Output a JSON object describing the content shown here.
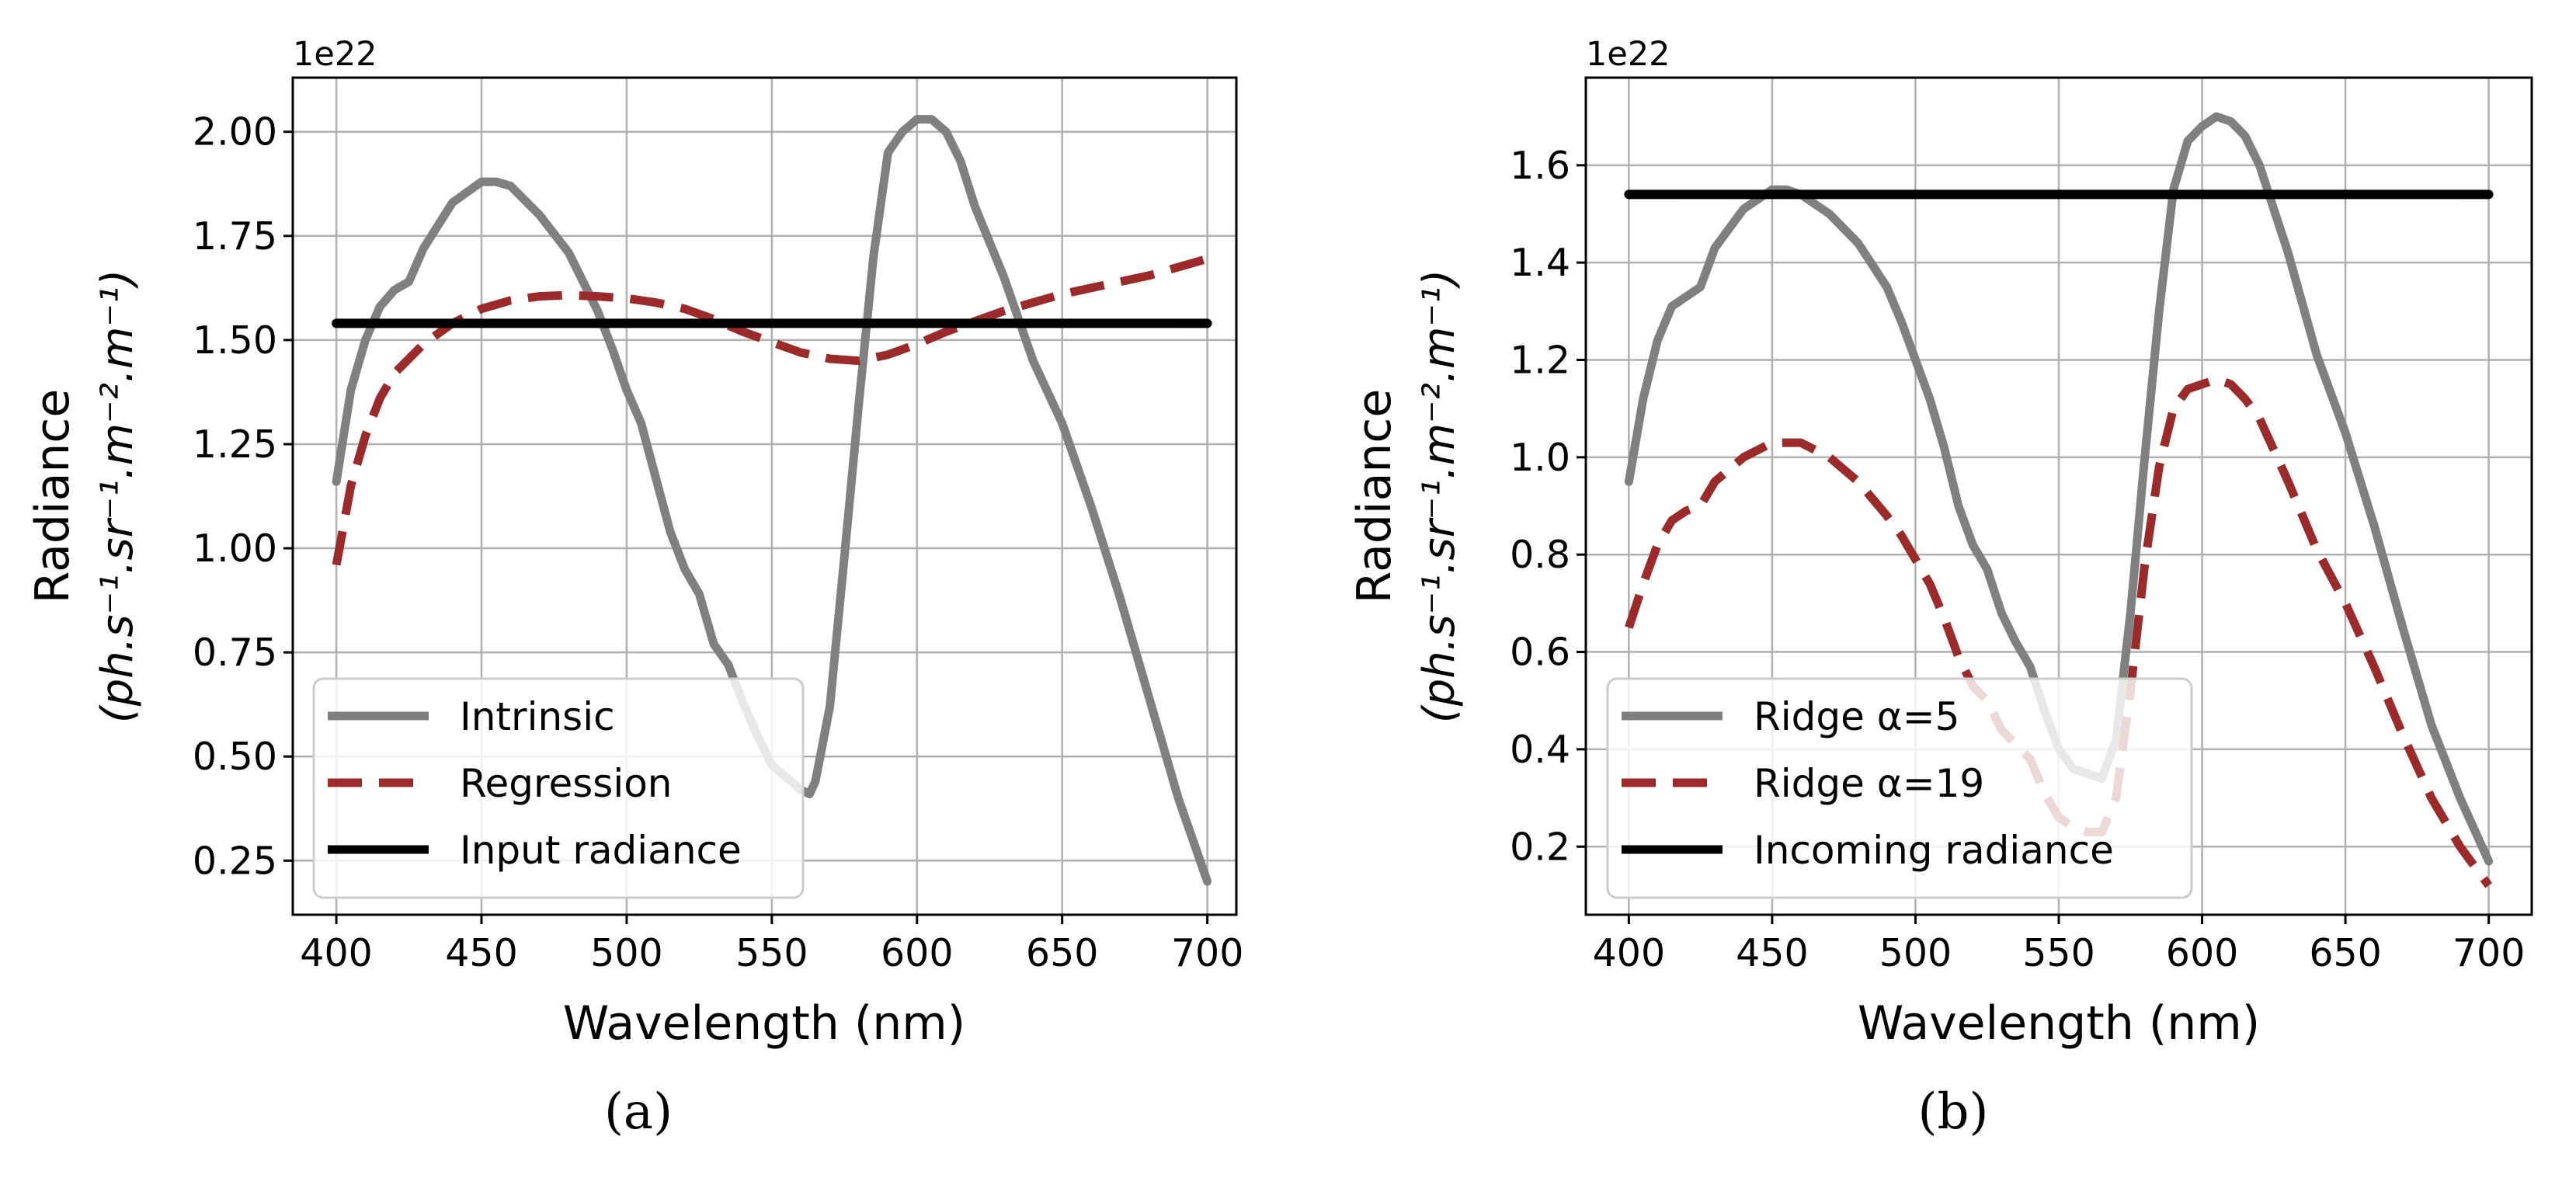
{
  "chart_data": [
    {
      "type": "line",
      "caption": "(a)",
      "offset_text": "1e22",
      "xlabel": "Wavelength (nm)",
      "ylabel_line1": "Radiance",
      "ylabel_line2": "(ph.s⁻¹.sr⁻¹.m⁻².m⁻¹)",
      "xlim": [
        385,
        710
      ],
      "ylim": [
        0.12,
        2.13
      ],
      "xticks": [
        400,
        450,
        500,
        550,
        600,
        650,
        700
      ],
      "xtick_labels": [
        "400",
        "450",
        "500",
        "550",
        "600",
        "650",
        "700"
      ],
      "yticks": [
        0.25,
        0.5,
        0.75,
        1.0,
        1.25,
        1.5,
        1.75,
        2.0
      ],
      "ytick_labels": [
        "0.25",
        "0.50",
        "0.75",
        "1.00",
        "1.25",
        "1.50",
        "1.75",
        "2.00"
      ],
      "grid": true,
      "legend_position": "lower-left",
      "series": [
        {
          "name": "Intrinsic",
          "color": "#808080",
          "style": "solid",
          "x": [
            400,
            405,
            410,
            415,
            420,
            425,
            430,
            440,
            450,
            455,
            460,
            470,
            480,
            490,
            495,
            500,
            505,
            510,
            515,
            520,
            525,
            530,
            535,
            540,
            545,
            550,
            555,
            560,
            563,
            565,
            570,
            575,
            580,
            585,
            590,
            595,
            600,
            605,
            610,
            615,
            620,
            630,
            640,
            650,
            660,
            670,
            680,
            690,
            700
          ],
          "y": [
            1.16,
            1.38,
            1.5,
            1.58,
            1.62,
            1.64,
            1.72,
            1.83,
            1.88,
            1.88,
            1.87,
            1.8,
            1.71,
            1.57,
            1.48,
            1.38,
            1.3,
            1.17,
            1.04,
            0.95,
            0.89,
            0.77,
            0.72,
            0.63,
            0.55,
            0.48,
            0.45,
            0.42,
            0.41,
            0.44,
            0.62,
            0.98,
            1.35,
            1.7,
            1.95,
            2.0,
            2.03,
            2.03,
            2.0,
            1.93,
            1.82,
            1.65,
            1.45,
            1.3,
            1.1,
            0.88,
            0.64,
            0.4,
            0.2
          ]
        },
        {
          "name": "Regression",
          "color": "#9b2a2a",
          "style": "dashed",
          "x": [
            400,
            405,
            410,
            415,
            420,
            430,
            440,
            450,
            460,
            470,
            480,
            490,
            500,
            510,
            520,
            530,
            540,
            550,
            560,
            570,
            580,
            590,
            600,
            610,
            620,
            630,
            640,
            650,
            660,
            670,
            680,
            690,
            700
          ],
          "y": [
            0.96,
            1.15,
            1.27,
            1.36,
            1.42,
            1.49,
            1.54,
            1.575,
            1.595,
            1.605,
            1.608,
            1.605,
            1.6,
            1.59,
            1.575,
            1.55,
            1.52,
            1.495,
            1.47,
            1.455,
            1.45,
            1.465,
            1.49,
            1.52,
            1.545,
            1.57,
            1.59,
            1.61,
            1.625,
            1.64,
            1.655,
            1.675,
            1.695
          ]
        },
        {
          "name": "Input radiance",
          "color": "#000000",
          "style": "solid",
          "x": [
            400,
            700
          ],
          "y": [
            1.54,
            1.54
          ]
        }
      ]
    },
    {
      "type": "line",
      "caption": "(b)",
      "offset_text": "1e22",
      "xlabel": "Wavelength (nm)",
      "ylabel_line1": "Radiance",
      "ylabel_line2": "(ph.s⁻¹.sr⁻¹.m⁻².m⁻¹)",
      "xlim": [
        385,
        715
      ],
      "ylim": [
        0.06,
        1.78
      ],
      "xticks": [
        400,
        450,
        500,
        550,
        600,
        650,
        700
      ],
      "xtick_labels": [
        "400",
        "450",
        "500",
        "550",
        "600",
        "650",
        "700"
      ],
      "yticks": [
        0.2,
        0.4,
        0.6,
        0.8,
        1.0,
        1.2,
        1.4,
        1.6
      ],
      "ytick_labels": [
        "0.2",
        "0.4",
        "0.6",
        "0.8",
        "1.0",
        "1.2",
        "1.4",
        "1.6"
      ],
      "grid": true,
      "legend_position": "lower-left",
      "series": [
        {
          "name": "Ridge α=5",
          "color": "#808080",
          "style": "solid",
          "x": [
            400,
            405,
            410,
            415,
            420,
            425,
            430,
            440,
            450,
            455,
            460,
            470,
            480,
            490,
            495,
            500,
            505,
            510,
            515,
            520,
            525,
            530,
            535,
            540,
            545,
            550,
            555,
            560,
            565,
            570,
            575,
            580,
            585,
            590,
            595,
            600,
            605,
            610,
            615,
            620,
            630,
            640,
            650,
            660,
            670,
            680,
            690,
            700
          ],
          "y": [
            0.95,
            1.12,
            1.24,
            1.31,
            1.33,
            1.35,
            1.43,
            1.51,
            1.55,
            1.55,
            1.54,
            1.5,
            1.44,
            1.35,
            1.28,
            1.2,
            1.12,
            1.02,
            0.9,
            0.82,
            0.77,
            0.68,
            0.62,
            0.57,
            0.48,
            0.4,
            0.36,
            0.35,
            0.34,
            0.42,
            0.68,
            1.0,
            1.3,
            1.55,
            1.65,
            1.68,
            1.7,
            1.69,
            1.66,
            1.6,
            1.42,
            1.21,
            1.05,
            0.86,
            0.65,
            0.45,
            0.3,
            0.17
          ]
        },
        {
          "name": "Ridge α=19",
          "color": "#9b2a2a",
          "style": "dashed",
          "x": [
            400,
            405,
            410,
            415,
            420,
            425,
            430,
            440,
            450,
            455,
            460,
            470,
            480,
            490,
            495,
            500,
            505,
            510,
            515,
            520,
            525,
            530,
            535,
            540,
            545,
            550,
            555,
            560,
            565,
            570,
            575,
            580,
            585,
            590,
            595,
            600,
            605,
            610,
            615,
            620,
            630,
            640,
            650,
            660,
            670,
            680,
            690,
            700
          ],
          "y": [
            0.65,
            0.74,
            0.82,
            0.87,
            0.89,
            0.9,
            0.95,
            1.0,
            1.03,
            1.03,
            1.03,
            1.0,
            0.95,
            0.88,
            0.84,
            0.79,
            0.74,
            0.67,
            0.59,
            0.53,
            0.5,
            0.44,
            0.41,
            0.38,
            0.31,
            0.26,
            0.24,
            0.23,
            0.23,
            0.3,
            0.52,
            0.78,
            0.98,
            1.1,
            1.14,
            1.15,
            1.16,
            1.15,
            1.12,
            1.08,
            0.95,
            0.81,
            0.7,
            0.57,
            0.43,
            0.3,
            0.2,
            0.12
          ]
        },
        {
          "name": "Incoming radiance",
          "color": "#000000",
          "style": "solid",
          "x": [
            400,
            700
          ],
          "y": [
            1.54,
            1.54
          ]
        }
      ]
    }
  ]
}
